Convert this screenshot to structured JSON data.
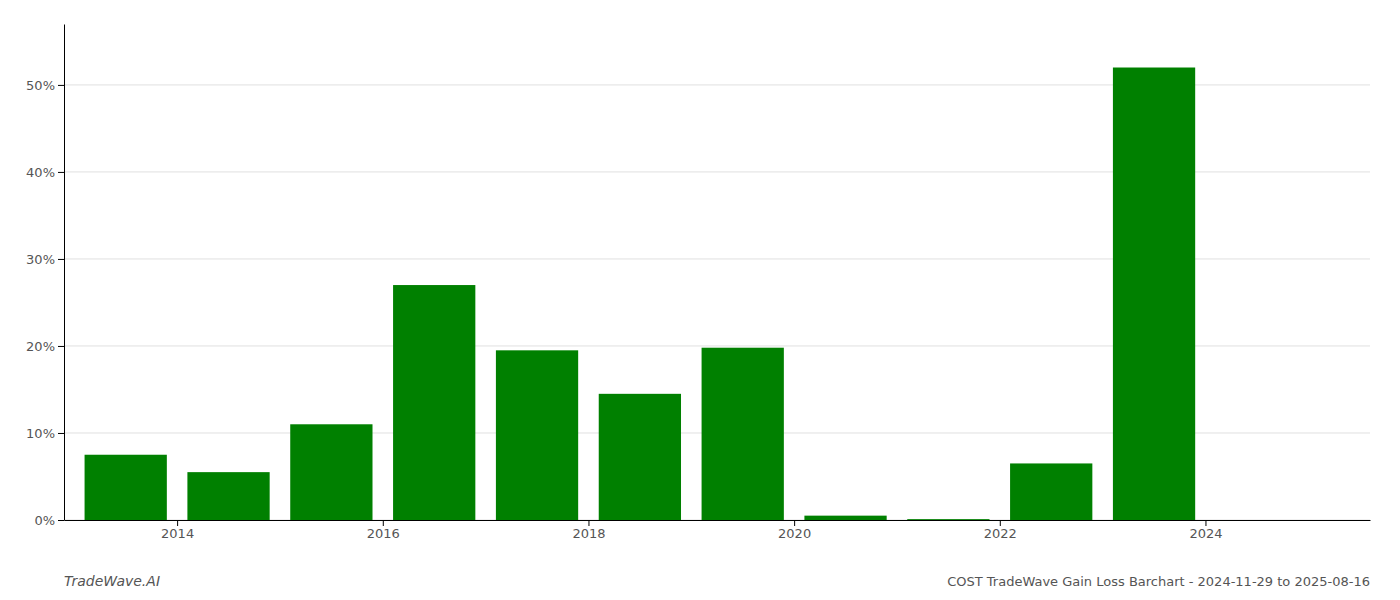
{
  "chart_data": {
    "type": "bar",
    "title": "COST TradeWave Gain Loss Barchart - 2024-11-29 to 2025-08-16",
    "annotations": [
      {
        "text": "TradeWave.AI"
      }
    ],
    "x": [
      2013,
      2014,
      2015,
      2016,
      2017,
      2018,
      2019,
      2020,
      2021,
      2022,
      2023,
      2024
    ],
    "values": [
      7.5,
      5.5,
      11.0,
      27.0,
      19.5,
      14.5,
      19.8,
      0.5,
      0.1,
      6.5,
      52.0,
      0.0
    ],
    "color": "#008000",
    "xlim": [
      2012.4,
      2025.1
    ],
    "xticks": [
      {
        "value": 2013.5,
        "label": "2014"
      },
      {
        "value": 2015.5,
        "label": "2016"
      },
      {
        "value": 2017.5,
        "label": "2018"
      },
      {
        "value": 2019.5,
        "label": "2020"
      },
      {
        "value": 2021.5,
        "label": "2022"
      },
      {
        "value": 2023.5,
        "label": "2024"
      }
    ],
    "ylim": [
      0,
      57
    ],
    "yticks": [
      {
        "value": 0,
        "label": "0%"
      },
      {
        "value": 10,
        "label": "10%"
      },
      {
        "value": 20,
        "label": "20%"
      },
      {
        "value": 30,
        "label": "30%"
      },
      {
        "value": 40,
        "label": "40%"
      },
      {
        "value": 50,
        "label": "50%"
      }
    ],
    "grid": true
  }
}
